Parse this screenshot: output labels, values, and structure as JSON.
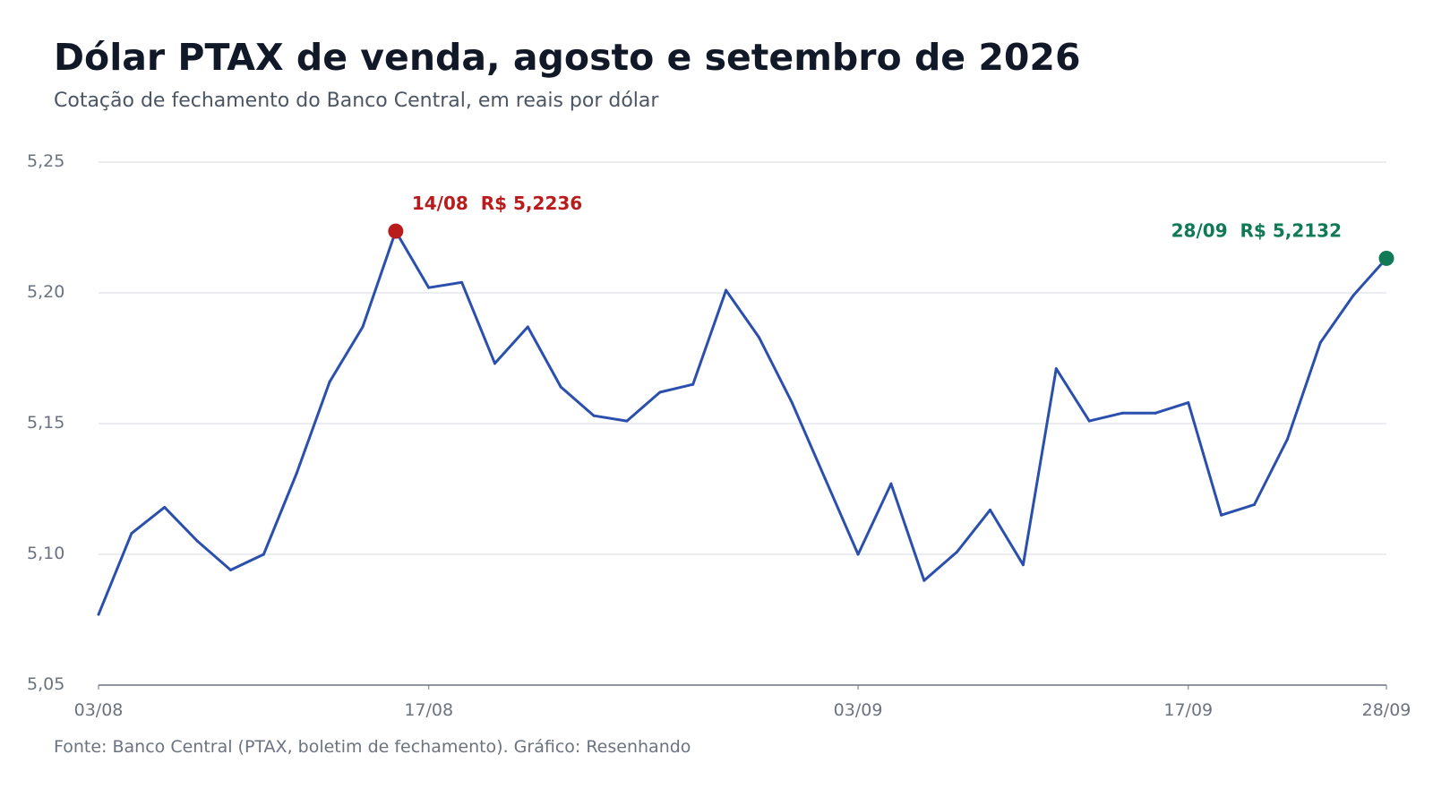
{
  "title": "Dólar PTAX de venda, agosto e setembro de 2026",
  "subtitle": "Cotação de fechamento do Banco Central, em reais por dólar",
  "source": "Fonte: Banco Central (PTAX, boletim de fechamento). Gráfico: Resenhando",
  "colors": {
    "line": "#2a4fad",
    "max_marker": "#b91c1c",
    "last_marker": "#0f7a55",
    "grid": "#e5e7eb",
    "axis": "#6b7280"
  },
  "chart_data": {
    "type": "line",
    "title": "Dólar PTAX de venda, agosto e setembro de 2026",
    "subtitle": "Cotação de fechamento do Banco Central, em reais por dólar",
    "xlabel": "",
    "ylabel": "",
    "ylim": [
      5.05,
      5.25
    ],
    "yticks": [
      5.05,
      5.1,
      5.15,
      5.2,
      5.25
    ],
    "ytick_labels": [
      "5,05",
      "5,10",
      "5,15",
      "5,20",
      "5,25"
    ],
    "xtick_labels": [
      "03/08",
      "17/08",
      "03/09",
      "17/09",
      "28/09"
    ],
    "xtick_index": [
      0,
      10,
      23,
      33,
      39
    ],
    "grid": true,
    "x": [
      "03/08",
      "04/08",
      "05/08",
      "06/08",
      "07/08",
      "10/08",
      "11/08",
      "12/08",
      "13/08",
      "14/08",
      "17/08",
      "18/08",
      "19/08",
      "20/08",
      "21/08",
      "24/08",
      "25/08",
      "26/08",
      "27/08",
      "28/08",
      "31/08",
      "01/09",
      "02/09",
      "03/09",
      "04/09",
      "08/09",
      "09/09",
      "10/09",
      "11/09",
      "14/09",
      "15/09",
      "16/09",
      "17/09",
      "18/09",
      "21/09",
      "22/09",
      "23/09",
      "24/09",
      "25/09",
      "28/09"
    ],
    "series": [
      {
        "values": [
          5.077,
          5.108,
          5.118,
          5.105,
          5.094,
          5.1,
          5.131,
          5.166,
          5.187,
          5.2236,
          5.202,
          5.204,
          5.173,
          5.187,
          5.164,
          5.153,
          5.151,
          5.162,
          5.165,
          5.201,
          5.183,
          5.158,
          5.129,
          5.1,
          5.127,
          5.09,
          5.101,
          5.117,
          5.096,
          5.171,
          5.151,
          5.154,
          5.154,
          5.158,
          5.115,
          5.119,
          5.144,
          5.181,
          5.199,
          5.2132
        ]
      }
    ],
    "annotations": [
      {
        "index": 9,
        "label": "14/08  R$ 5,2236",
        "kind": "max"
      },
      {
        "index": 39,
        "label": "28/09  R$ 5,2132",
        "kind": "last"
      }
    ]
  }
}
